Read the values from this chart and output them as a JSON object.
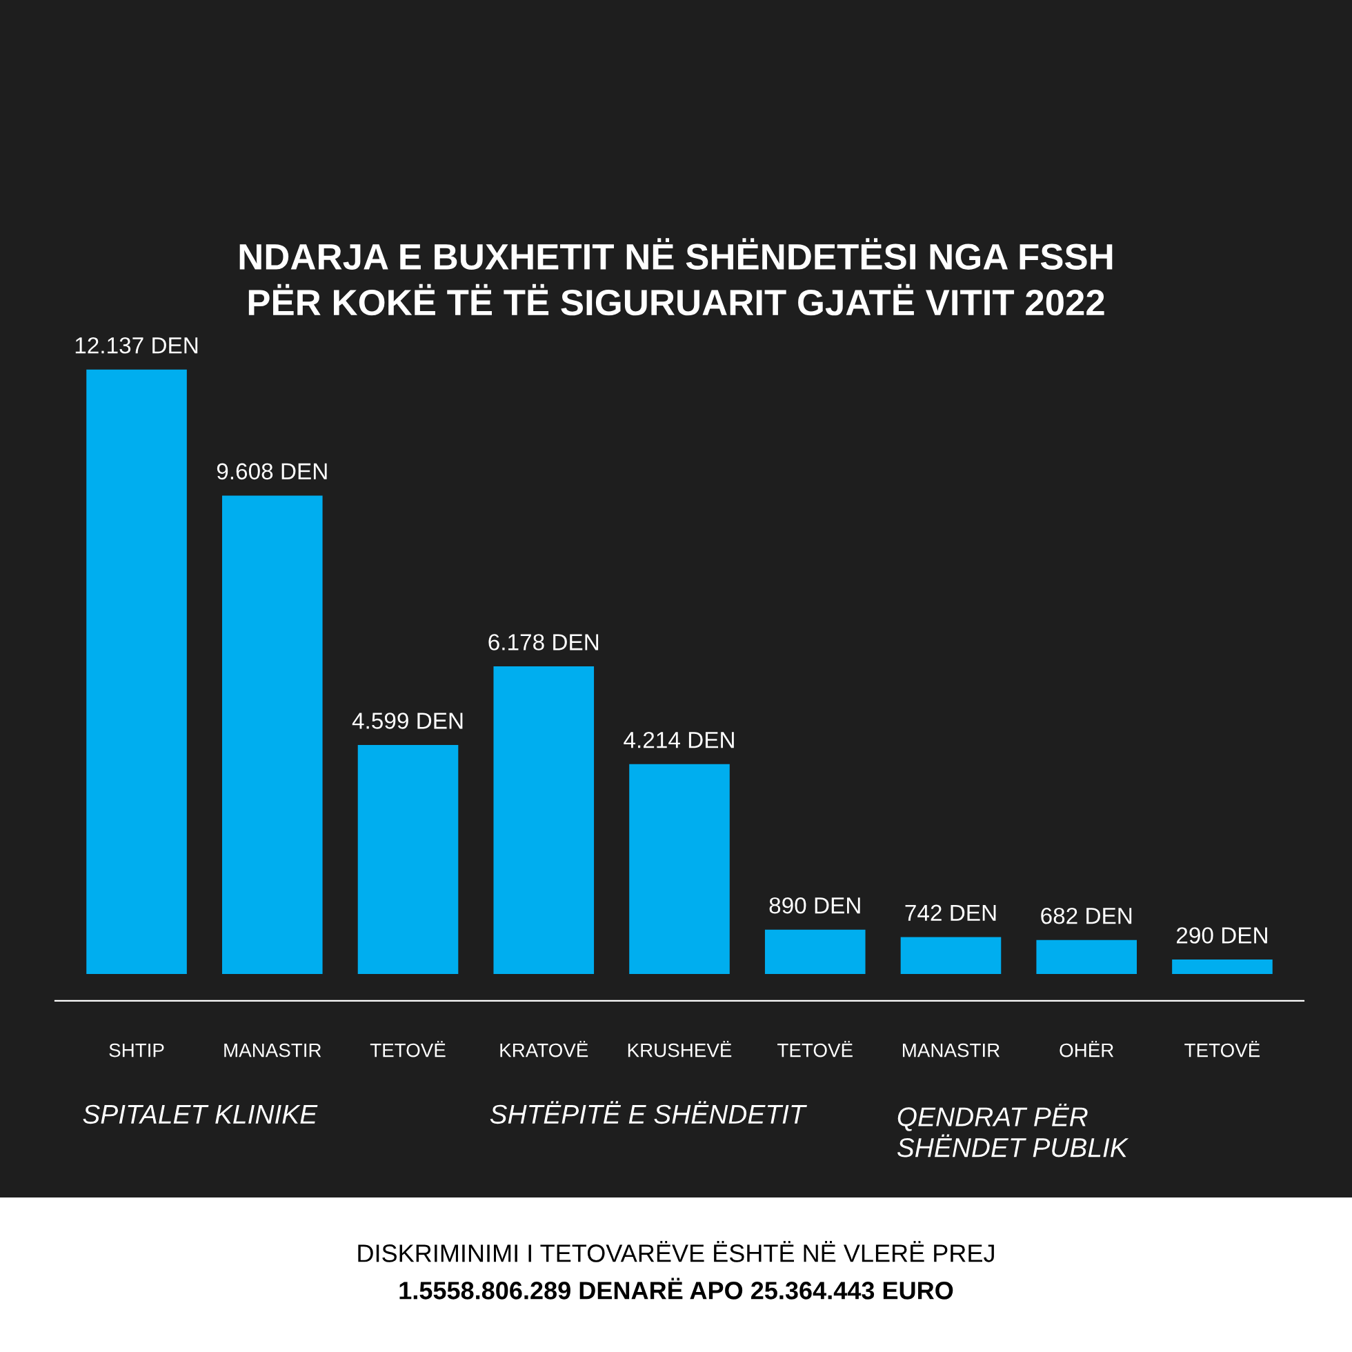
{
  "chart_data": {
    "type": "bar",
    "title": "NDARJA E BUXHETIT NË SHËNDETËSI NGA FSSH\nPËR KOKË TË TË SIGURUARIT GJATË VITIT 2022",
    "categories": [
      "SHTIP",
      "MANASTIR",
      "TETOVË",
      "KRATOVË",
      "KRUSHEVË",
      "TETOVË",
      "MANASTIR",
      "OHËR",
      "TETOVË"
    ],
    "values": [
      12137,
      9608,
      4599,
      6178,
      4214,
      890,
      742,
      682,
      290
    ],
    "value_labels": [
      "12.137 DEN",
      "9.608 DEN",
      "4.599 DEN",
      "6.178 DEN",
      "4.214 DEN",
      "890 DEN",
      "742 DEN",
      "682 DEN",
      "290 DEN"
    ],
    "color": "#00aeef",
    "grid": false,
    "legend": false,
    "tick_labels": "x",
    "annotations": [
      "SPITALET KLINIKE",
      "SHTËPITË E SHËNDETIT",
      "QENDRAT PËR\nSHËNDET PUBLIK",
      "DISKRIMINIMI I TETOVARËVE ËSHTË NË VLERË PREJ",
      "1.5558.806.289 DENARË APO 25.364.443 EURO"
    ]
  }
}
